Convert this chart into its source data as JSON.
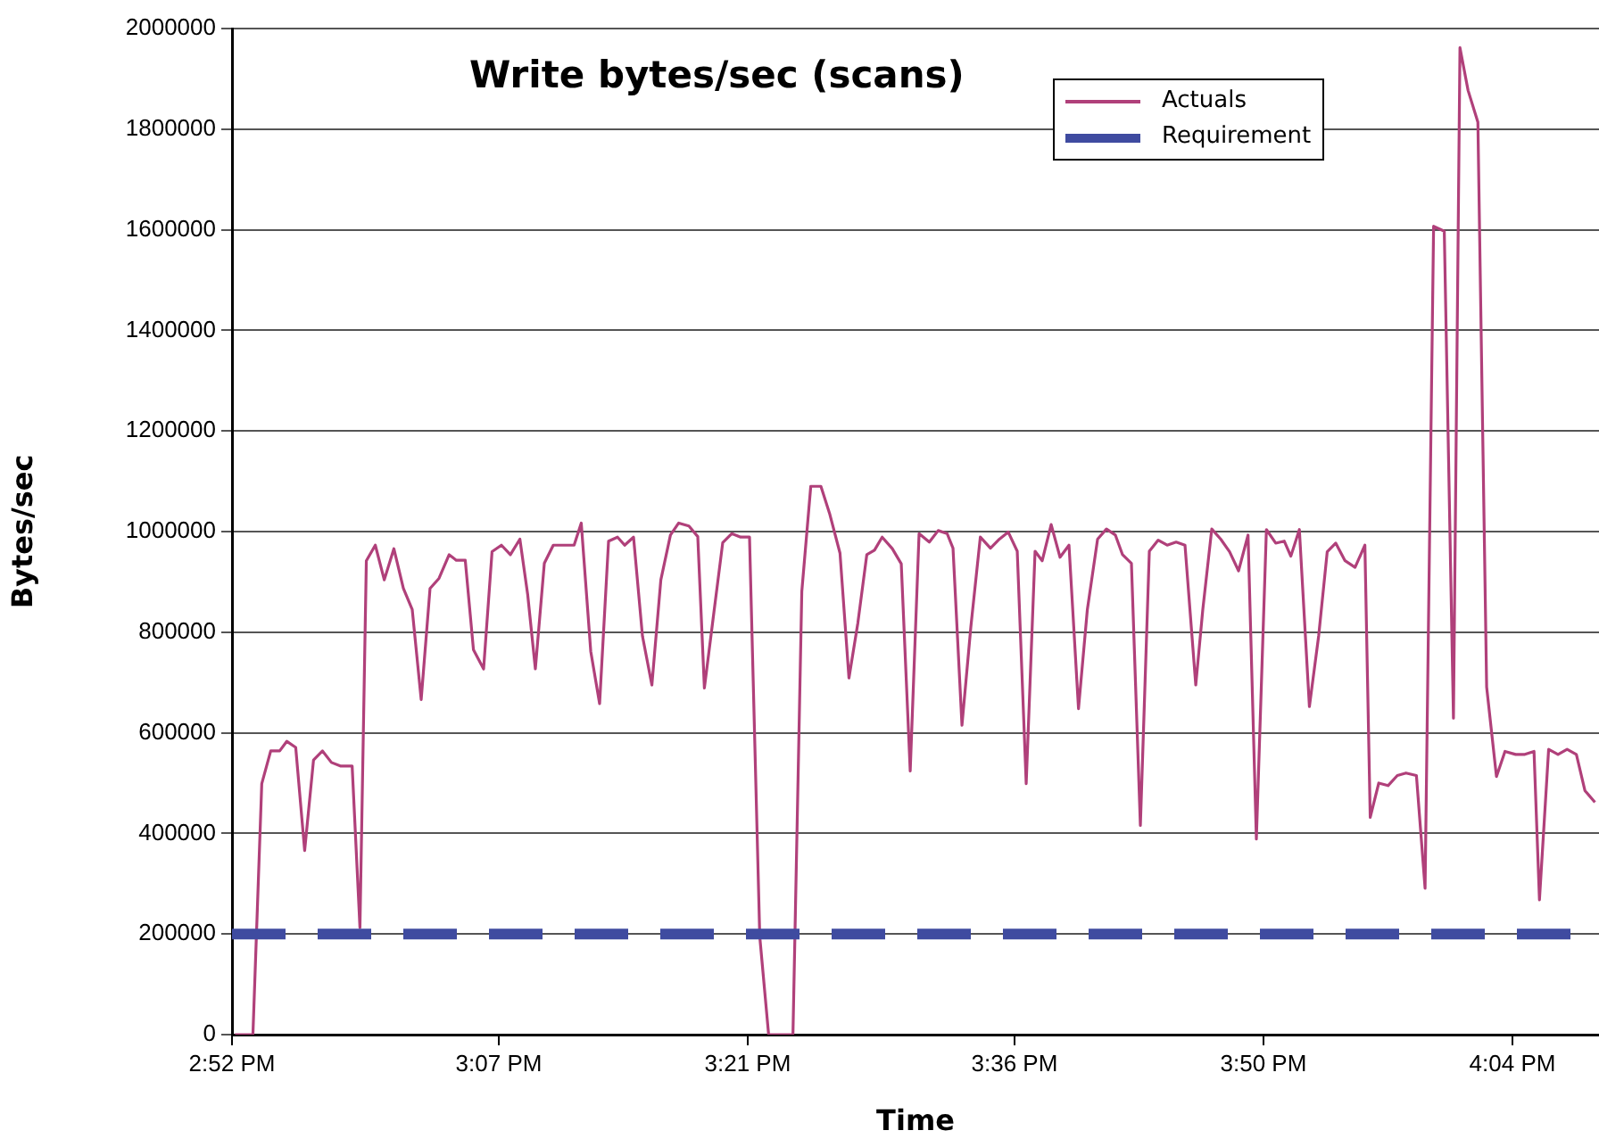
{
  "chart_data": {
    "type": "line",
    "title": "Write bytes/sec (scans)",
    "xlabel": "Time",
    "ylabel": "Bytes/sec",
    "xlim": [
      14.8667,
      16.1478
    ],
    "xticks": [
      {
        "value": 14.8667,
        "label": "2:52 PM"
      },
      {
        "value": 15.1167,
        "label": "3:07 PM"
      },
      {
        "value": 15.35,
        "label": "3:21 PM"
      },
      {
        "value": 15.6,
        "label": "3:36 PM"
      },
      {
        "value": 15.8333,
        "label": "3:50 PM"
      },
      {
        "value": 16.0667,
        "label": "4:04 PM"
      }
    ],
    "ylim": [
      0,
      2000000
    ],
    "yticks": [
      0,
      200000,
      400000,
      600000,
      800000,
      1000000,
      1200000,
      1400000,
      1600000,
      1800000,
      2000000
    ],
    "grid": "y",
    "legend": "top right",
    "marker": "none",
    "series": [
      {
        "name": "Actuals",
        "color": "#b0407a",
        "line_style": "solid",
        "x": [
          14.8695,
          14.8863,
          14.8946,
          14.903,
          14.9114,
          14.918,
          14.9264,
          14.9348,
          14.9431,
          14.9515,
          14.9599,
          14.9682,
          14.9793,
          14.9866,
          14.9926,
          15.001,
          15.0094,
          15.0184,
          15.0273,
          15.0356,
          15.044,
          15.0523,
          15.0607,
          15.0702,
          15.0769,
          15.0853,
          15.093,
          15.1025,
          15.1104,
          15.1192,
          15.1276,
          15.1365,
          15.1438,
          15.151,
          15.1594,
          15.1678,
          15.1873,
          15.194,
          15.2029,
          15.2112,
          15.2196,
          15.228,
          15.2347,
          15.243,
          15.2514,
          15.2602,
          15.2686,
          15.2776,
          15.2853,
          15.2949,
          15.3032,
          15.3094,
          15.3183,
          15.3266,
          15.335,
          15.3434,
          15.3517,
          15.3613,
          15.3696,
          15.3785,
          15.3924,
          15.4007,
          15.4091,
          15.4186,
          15.427,
          15.4365,
          15.4449,
          15.4532,
          15.4616,
          15.4688,
          15.476,
          15.4855,
          15.4939,
          15.5023,
          15.5106,
          15.5202,
          15.5285,
          15.5369,
          15.5424,
          15.5508,
          15.5591,
          15.568,
          15.5775,
          15.5859,
          15.5942,
          15.6026,
          15.611,
          15.6193,
          15.626,
          15.6344,
          15.6427,
          15.6511,
          15.66,
          15.6683,
          15.6779,
          15.6862,
          15.6946,
          15.7013,
          15.7096,
          15.718,
          15.7264,
          15.7347,
          15.7431,
          15.7515,
          15.7598,
          15.7699,
          15.7765,
          15.7849,
          15.7933,
          15.8016,
          15.81,
          15.8189,
          15.8267,
          15.8361,
          15.8448,
          15.8528,
          15.859,
          15.867,
          15.8764,
          15.8851,
          15.8931,
          15.9011,
          15.9098,
          15.9192,
          15.9284,
          15.9334,
          15.9414,
          15.9501,
          15.9588,
          15.9669,
          15.9767,
          15.9848,
          15.9928,
          16.0028,
          16.0114,
          16.0175,
          16.0251,
          16.0343,
          16.0425,
          16.0517,
          16.0597,
          16.0697,
          16.0783,
          16.0869,
          16.092,
          16.1006,
          16.1094,
          16.1179,
          16.1266,
          16.1346,
          16.144
        ],
        "values": [
          0,
          0,
          499000,
          564000,
          564000,
          583000,
          571000,
          366000,
          546000,
          564000,
          541000,
          534000,
          534000,
          213000,
          942000,
          973000,
          904000,
          966000,
          887000,
          845000,
          666000,
          887000,
          907000,
          954000,
          943000,
          943000,
          765000,
          727000,
          960000,
          973000,
          954000,
          985000,
          875000,
          727000,
          937000,
          973000,
          973000,
          1017000,
          762000,
          658000,
          981000,
          989000,
          973000,
          989000,
          792000,
          695000,
          904000,
          993000,
          1017000,
          1011000,
          990000,
          689000,
          839000,
          978000,
          996000,
          989000,
          989000,
          195000,
          0,
          0,
          0,
          881000,
          1090000,
          1090000,
          1034000,
          957000,
          709000,
          818000,
          954000,
          963000,
          989000,
          966000,
          936000,
          524000,
          996000,
          979000,
          1002000,
          996000,
          967000,
          615000,
          810000,
          989000,
          967000,
          985000,
          999000,
          961000,
          499000,
          961000,
          942000,
          1014000,
          949000,
          973000,
          648000,
          845000,
          985000,
          1005000,
          993000,
          954000,
          937000,
          416000,
          961000,
          983000,
          973000,
          979000,
          973000,
          695000,
          845000,
          1005000,
          985000,
          960000,
          922000,
          993000,
          389000,
          1004000,
          977000,
          981000,
          951000,
          1004000,
          652000,
          793000,
          960000,
          977000,
          942000,
          929000,
          973000,
          432000,
          500000,
          495000,
          515000,
          520000,
          515000,
          291000,
          1607000,
          1597000,
          629000,
          1962000,
          1877000,
          1814000,
          691000,
          513000,
          563000,
          557000,
          557000,
          563000,
          268000,
          567000,
          557000,
          567000,
          557000,
          485000,
          462000
        ]
      },
      {
        "name": "Requirement",
        "color": "#3f4ba0",
        "line_style": "dashed",
        "x": [
          14.8667,
          16.1478
        ],
        "values": [
          200000,
          200000
        ]
      }
    ]
  }
}
